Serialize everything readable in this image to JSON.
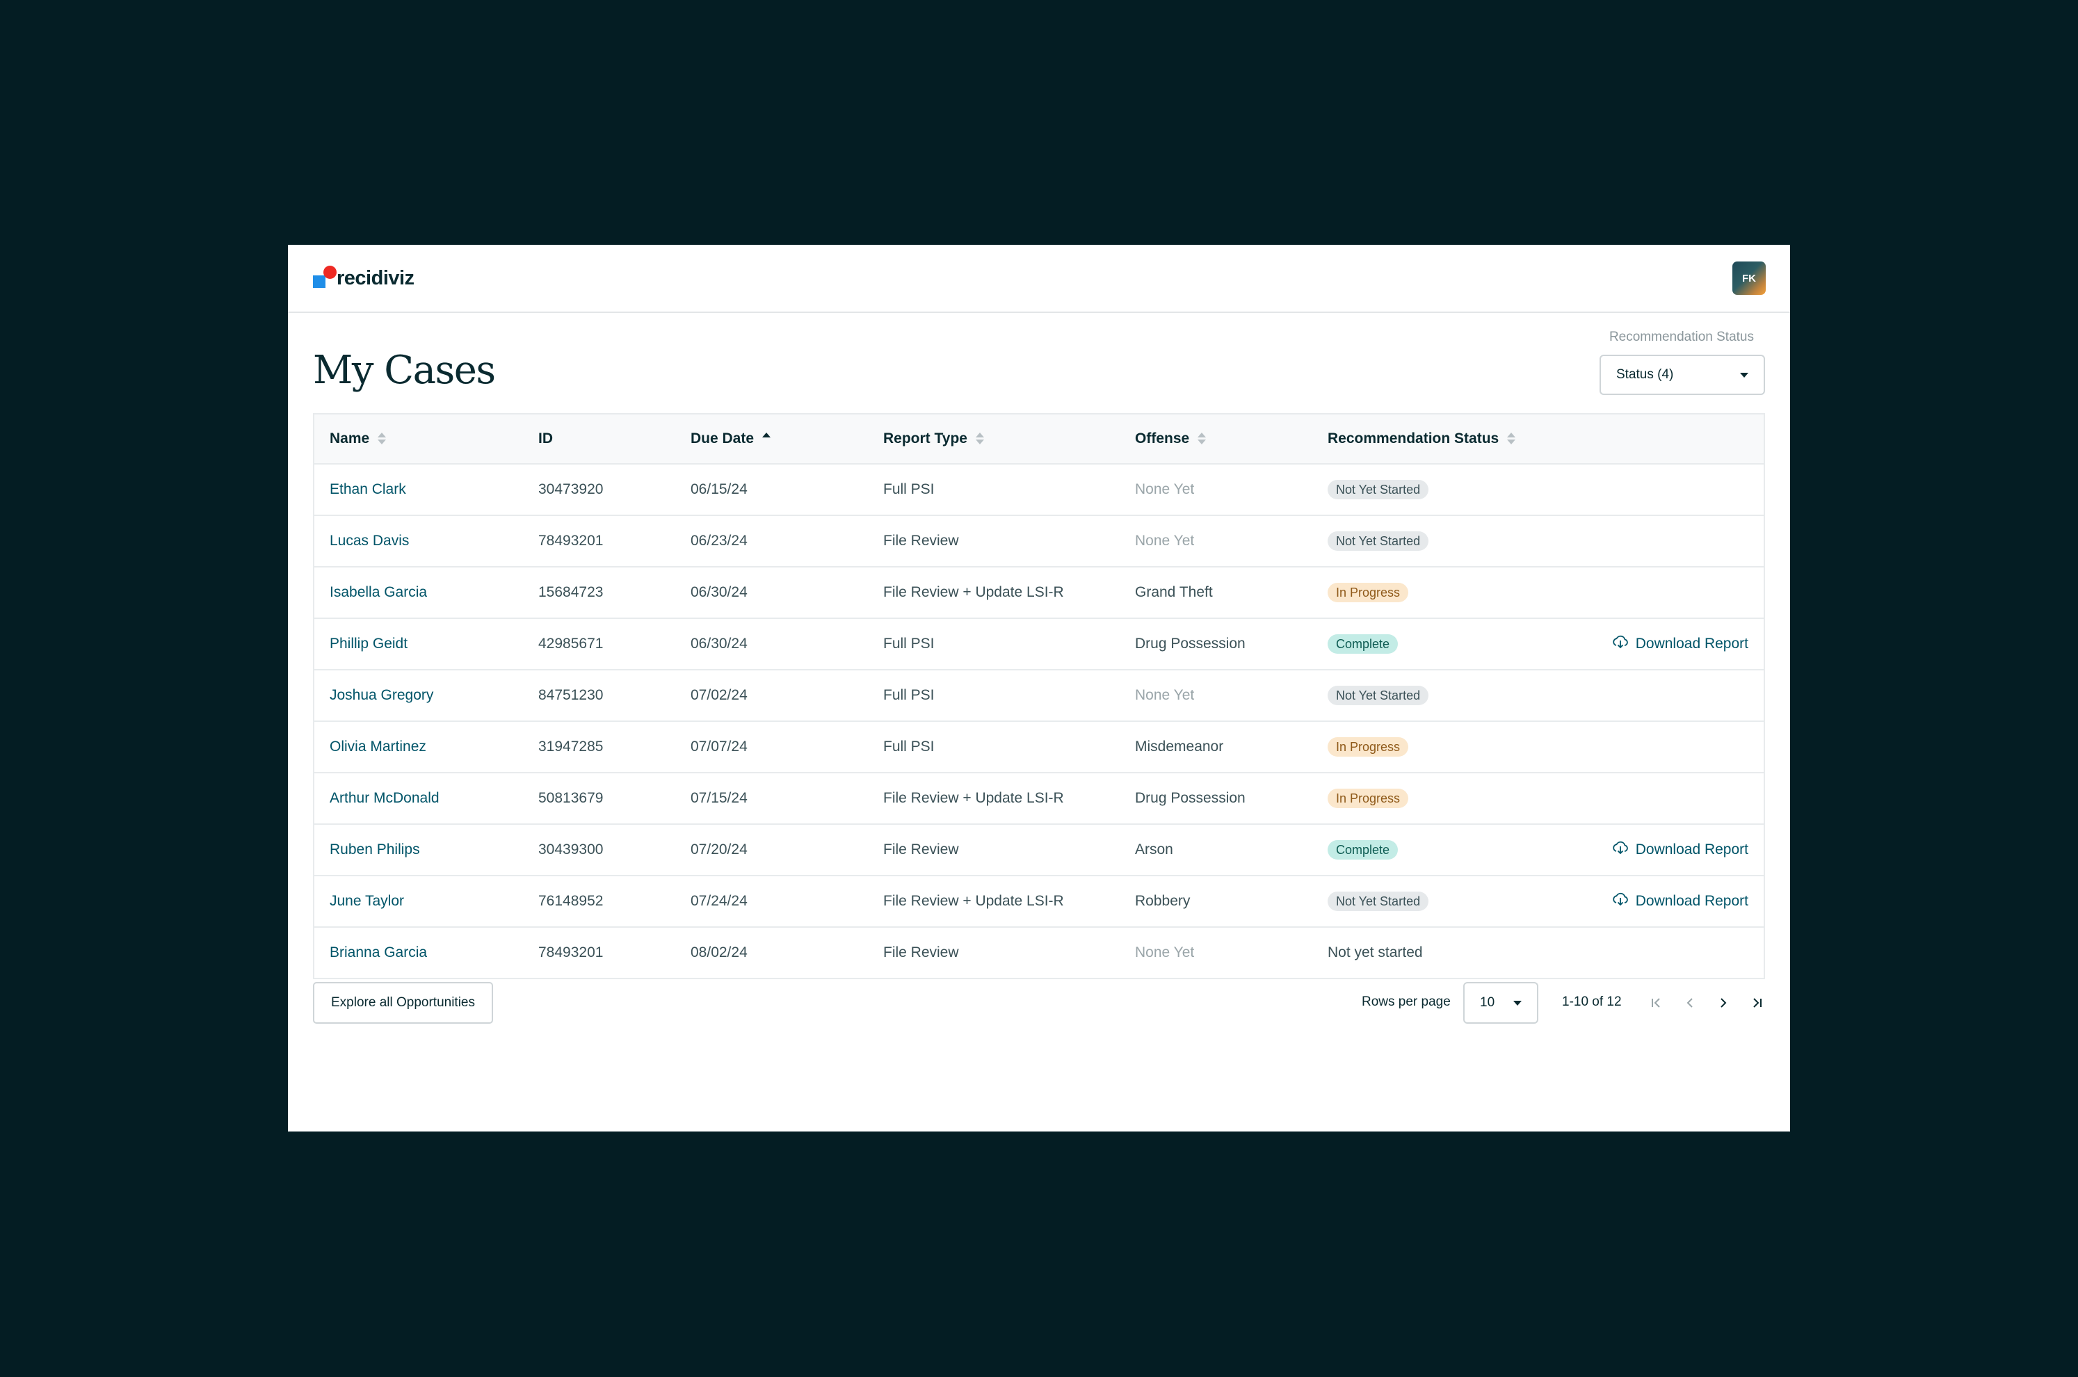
{
  "app": {
    "brand": "recidiviz",
    "user_initials": "FK"
  },
  "page": {
    "title": "My Cases"
  },
  "filter": {
    "label": "Recommendation Status",
    "value": "Status (4)"
  },
  "table": {
    "headers": {
      "name": "Name",
      "id": "ID",
      "due_date": "Due Date",
      "report_type": "Report Type",
      "offense": "Offense",
      "status": "Recommendation Status"
    },
    "sorted_by": "Due Date",
    "rows": [
      {
        "name": "Ethan Clark",
        "id": "30473920",
        "due": "06/15/24",
        "report": "Full PSI",
        "offense": "None Yet",
        "status": "Not Yet Started",
        "status_kind": "not-started",
        "download": ""
      },
      {
        "name": "Lucas Davis",
        "id": "78493201",
        "due": "06/23/24",
        "report": "File Review",
        "offense": "None Yet",
        "status": "Not Yet Started",
        "status_kind": "not-started",
        "download": ""
      },
      {
        "name": "Isabella Garcia",
        "id": "15684723",
        "due": "06/30/24",
        "report": "File Review + Update LSI-R",
        "offense": "Grand Theft",
        "status": "In Progress",
        "status_kind": "in-progress",
        "download": ""
      },
      {
        "name": "Phillip Geidt",
        "id": "42985671",
        "due": "06/30/24",
        "report": "Full PSI",
        "offense": "Drug Possession",
        "status": "Complete",
        "status_kind": "complete",
        "download": "Download Report"
      },
      {
        "name": "Joshua Gregory",
        "id": "84751230",
        "due": "07/02/24",
        "report": "Full PSI",
        "offense": "None Yet",
        "status": "Not Yet Started",
        "status_kind": "not-started",
        "download": ""
      },
      {
        "name": "Olivia Martinez",
        "id": "31947285",
        "due": "07/07/24",
        "report": "Full PSI",
        "offense": "Misdemeanor",
        "status": "In Progress",
        "status_kind": "in-progress",
        "download": ""
      },
      {
        "name": "Arthur McDonald",
        "id": "50813679",
        "due": "07/15/24",
        "report": "File Review + Update LSI-R",
        "offense": "Drug Possession",
        "status": "In Progress",
        "status_kind": "in-progress",
        "download": ""
      },
      {
        "name": "Ruben Philips",
        "id": "30439300",
        "due": "07/20/24",
        "report": "File Review",
        "offense": "Arson",
        "status": "Complete",
        "status_kind": "complete",
        "download": "Download Report"
      },
      {
        "name": "June Taylor",
        "id": "76148952",
        "due": "07/24/24",
        "report": "File Review + Update LSI-R",
        "offense": "Robbery",
        "status": "Not Yet Started",
        "status_kind": "not-started",
        "download": "Download Report"
      },
      {
        "name": "Brianna Garcia",
        "id": "78493201",
        "due": "08/02/24",
        "report": "File Review",
        "offense": "None Yet",
        "status": "Not yet started",
        "status_kind": "plain",
        "download": ""
      }
    ]
  },
  "footer": {
    "explore_label": "Explore all Opportunities",
    "rows_per_page_label": "Rows per page",
    "rows_per_page_value": "10",
    "range": "1-10 of 12"
  }
}
